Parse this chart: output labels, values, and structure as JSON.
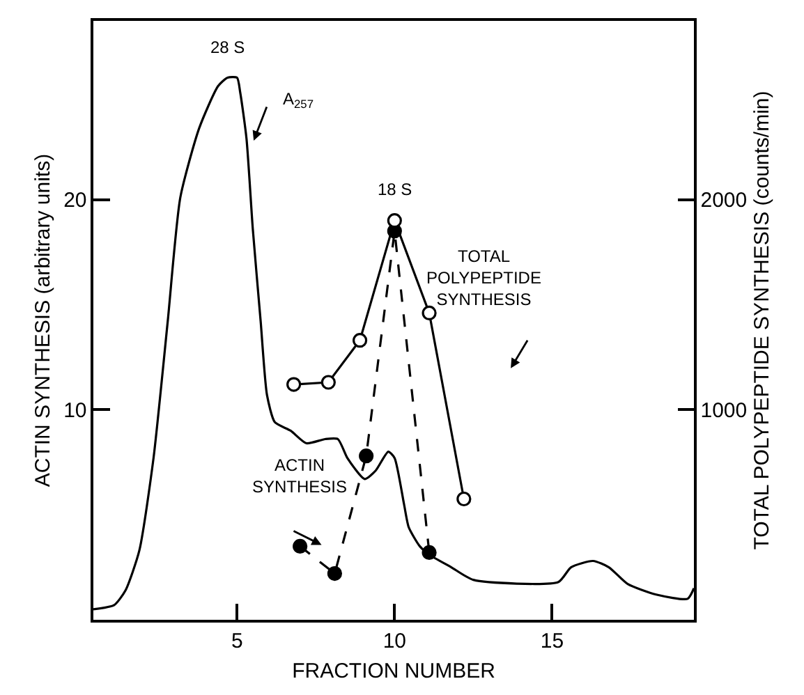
{
  "chart_data": {
    "type": "line",
    "xlabel": "FRACTION NUMBER",
    "ylabel": "ACTIN SYNTHESIS (arbitrary units)",
    "y2label": "TOTAL POLYPEPTIDE SYNTHESIS (counts/min)",
    "xlim": [
      0.44,
      19.5
    ],
    "xticks": [
      5,
      10,
      15
    ],
    "ylim": [
      0,
      28.5
    ],
    "yticks": [
      10,
      20
    ],
    "y2lim": [
      0,
      2850
    ],
    "y2ticks": [
      1000,
      2000
    ],
    "series": [
      {
        "color": "#000000",
        "marker": "none",
        "line_style": "solid",
        "x": [
          0.44,
          1.1,
          1.46,
          1.9,
          2.35,
          2.8,
          3.2,
          3.8,
          4.4,
          4.7,
          5.0,
          5.1,
          5.3,
          5.5,
          5.75,
          5.95,
          6.2,
          6.7,
          7.2,
          7.8,
          8.2,
          8.5,
          9.05,
          9.4,
          9.8,
          10.0,
          10.3,
          10.45,
          10.8,
          11.1,
          11.8,
          12.5,
          15.2,
          15.6,
          16.3,
          16.8,
          17.4,
          18.3,
          19.3,
          19.5
        ],
        "values": [
          0.5,
          0.7,
          1.4,
          3.3,
          7.7,
          14.2,
          20.1,
          23.4,
          25.4,
          25.8,
          25.8,
          25.1,
          22.9,
          18.6,
          14.2,
          10.7,
          9.4,
          9.0,
          8.4,
          8.6,
          8.6,
          7.7,
          6.7,
          7.1,
          8.0,
          7.7,
          5.5,
          4.4,
          3.5,
          3.1,
          2.5,
          1.9,
          1.8,
          2.5,
          2.8,
          2.5,
          1.7,
          1.2,
          1.0,
          1.5
        ]
      },
      {
        "color": "#000000",
        "marker": "circle",
        "line_style": "dashed",
        "x": [
          7,
          8.1,
          9.1,
          10,
          11.1
        ],
        "values": [
          3.5,
          2.2,
          7.8,
          18.5,
          3.2
        ]
      },
      {
        "color": "#000000",
        "marker": "circle",
        "line_style": "solid",
        "axis": "y2",
        "x": [
          6.8,
          7.9,
          8.9,
          10,
          11.1,
          12.2
        ],
        "values": [
          1120,
          1130,
          1330,
          1900,
          1460,
          575
        ]
      }
    ],
    "annotations": [
      {
        "text": "28 S",
        "x": 4.7,
        "y": 25.8
      },
      "A$_{257}$",
      {
        "text": "18 S",
        "x": 10,
        "y": 19.0
      },
      "TOTAL POLYPEPTIDE SYNTHESIS",
      "ACTIN SYNTHESIS"
    ]
  }
}
